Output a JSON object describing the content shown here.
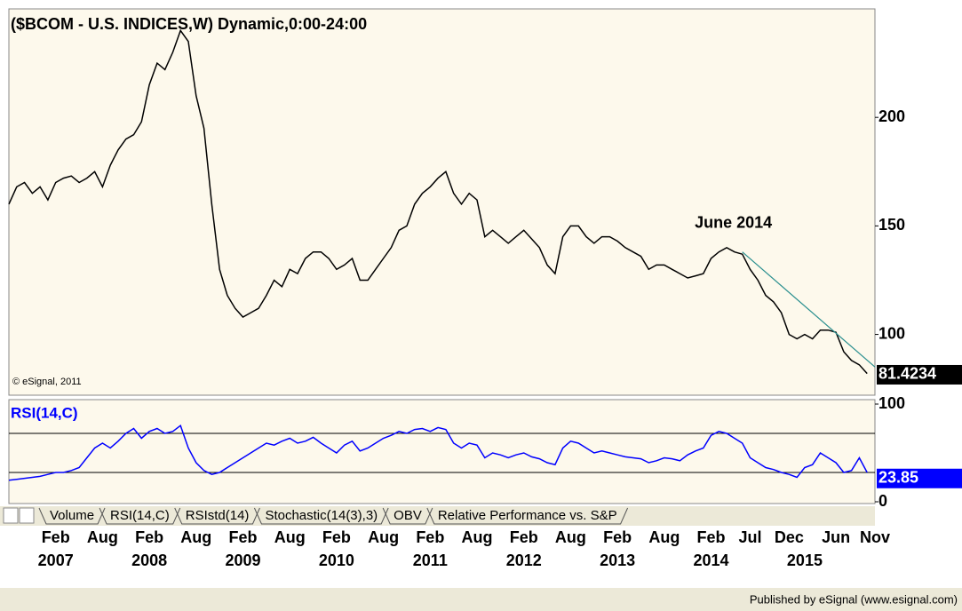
{
  "chart_data": [
    {
      "type": "line",
      "title": "($BCOM - U.S. INDICES,W) Dynamic,0:00-24:00",
      "copyright": "© eSignal, 2011",
      "x_start": "2006-08",
      "xlim": [
        "2006-08",
        "2015-11"
      ],
      "series": [
        {
          "name": "$BCOM",
          "color": "#000000",
          "values": [
            160,
            168,
            170,
            165,
            168,
            162,
            170,
            172,
            173,
            170,
            172,
            175,
            168,
            178,
            185,
            190,
            192,
            198,
            215,
            225,
            222,
            230,
            240,
            235,
            210,
            195,
            160,
            130,
            118,
            112,
            108,
            110,
            112,
            118,
            125,
            122,
            130,
            128,
            135,
            138,
            138,
            135,
            130,
            132,
            135,
            125,
            125,
            130,
            135,
            140,
            148,
            150,
            160,
            165,
            168,
            172,
            175,
            165,
            160,
            165,
            162,
            145,
            148,
            145,
            142,
            145,
            148,
            144,
            140,
            132,
            128,
            145,
            150,
            150,
            145,
            142,
            145,
            145,
            143,
            140,
            138,
            136,
            130,
            132,
            132,
            130,
            128,
            126,
            127,
            128,
            135,
            138,
            140,
            138,
            137,
            130,
            125,
            118,
            115,
            110,
            100,
            98,
            100,
            98,
            102,
            102,
            101,
            92,
            88,
            86,
            82
          ]
        }
      ],
      "last_value": 81.4234,
      "ylim": [
        72,
        250
      ],
      "yticks": [
        100,
        150,
        200
      ],
      "annotation": {
        "text": "June 2014",
        "x": [
          "2014-06",
          "2015-11"
        ],
        "y": [
          138,
          85
        ],
        "color": "#2a8f8f"
      },
      "xticks": [
        {
          "value": "2007-02",
          "label": "Feb"
        },
        {
          "value": "2007-08",
          "label": "Aug"
        },
        {
          "value": "2008-02",
          "label": "Feb"
        },
        {
          "value": "2008-08",
          "label": "Aug"
        },
        {
          "value": "2009-02",
          "label": "Feb"
        },
        {
          "value": "2009-08",
          "label": "Aug"
        },
        {
          "value": "2010-02",
          "label": "Feb"
        },
        {
          "value": "2010-08",
          "label": "Aug"
        },
        {
          "value": "2011-02",
          "label": "Feb"
        },
        {
          "value": "2011-08",
          "label": "Aug"
        },
        {
          "value": "2012-02",
          "label": "Feb"
        },
        {
          "value": "2012-08",
          "label": "Aug"
        },
        {
          "value": "2013-02",
          "label": "Feb"
        },
        {
          "value": "2013-08",
          "label": "Aug"
        },
        {
          "value": "2014-02",
          "label": "Feb"
        },
        {
          "value": "2014-07",
          "label": "Jul"
        },
        {
          "value": "2014-12",
          "label": "Dec"
        },
        {
          "value": "2015-06",
          "label": "Jun"
        },
        {
          "value": "2015-11",
          "label": "Nov"
        }
      ],
      "xtick_years": [
        {
          "value": "2007-02",
          "label": "2007"
        },
        {
          "value": "2008-02",
          "label": "2008"
        },
        {
          "value": "2009-02",
          "label": "2009"
        },
        {
          "value": "2010-02",
          "label": "2010"
        },
        {
          "value": "2011-02",
          "label": "2011"
        },
        {
          "value": "2012-02",
          "label": "2012"
        },
        {
          "value": "2013-02",
          "label": "2013"
        },
        {
          "value": "2014-02",
          "label": "2014"
        },
        {
          "value": "2015-02",
          "label": "2015"
        }
      ]
    },
    {
      "type": "line",
      "title": "RSI(14,C)",
      "x_start": "2006-08",
      "xlim": [
        "2006-08",
        "2015-11"
      ],
      "series": [
        {
          "name": "RSI(14,C)",
          "color": "#0000ff",
          "values": [
            22,
            23,
            24,
            25,
            26,
            28,
            30,
            30,
            32,
            35,
            45,
            55,
            60,
            55,
            62,
            70,
            75,
            65,
            72,
            75,
            70,
            72,
            78,
            55,
            40,
            32,
            28,
            30,
            35,
            40,
            45,
            50,
            55,
            60,
            58,
            62,
            65,
            60,
            62,
            66,
            60,
            55,
            50,
            58,
            62,
            52,
            55,
            60,
            65,
            68,
            72,
            70,
            74,
            75,
            72,
            76,
            74,
            60,
            55,
            60,
            58,
            45,
            50,
            48,
            45,
            48,
            50,
            46,
            44,
            40,
            38,
            55,
            62,
            60,
            55,
            50,
            52,
            50,
            48,
            46,
            45,
            44,
            40,
            42,
            45,
            44,
            42,
            48,
            52,
            55,
            68,
            72,
            70,
            65,
            60,
            45,
            40,
            35,
            33,
            30,
            28,
            25,
            35,
            38,
            50,
            45,
            40,
            30,
            32,
            45,
            30
          ]
        }
      ],
      "last_value": 23.85,
      "ylim": [
        0,
        100
      ],
      "yticks": [
        0,
        100
      ],
      "levels": [
        30,
        70
      ]
    }
  ],
  "tabs": [
    "Volume",
    "RSI(14,C)",
    "RSIstd(14)",
    "Stochastic(14(3),3)",
    "OBV",
    "Relative Performance vs. S&P"
  ],
  "footer": "Published by eSignal (www.esignal.com)"
}
